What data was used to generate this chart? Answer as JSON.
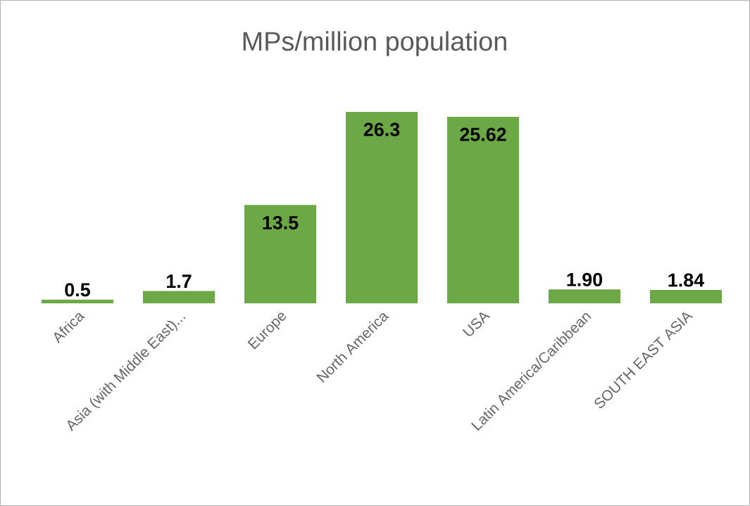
{
  "chart_data": {
    "type": "bar",
    "title": "MPs/million population",
    "categories": [
      "Africa",
      "Asia (with Middle East)...",
      "Europe",
      "North America",
      "USA",
      "Latin America/Caribbean",
      "SOUTH EAST ASIA"
    ],
    "values": [
      0.5,
      1.7,
      13.5,
      26.3,
      25.62,
      1.9,
      1.84
    ],
    "value_labels": [
      "0.5",
      "1.7",
      "13.5",
      "26.3",
      "25.62",
      "1.90",
      "1.84"
    ],
    "color": "#6ca845"
  }
}
